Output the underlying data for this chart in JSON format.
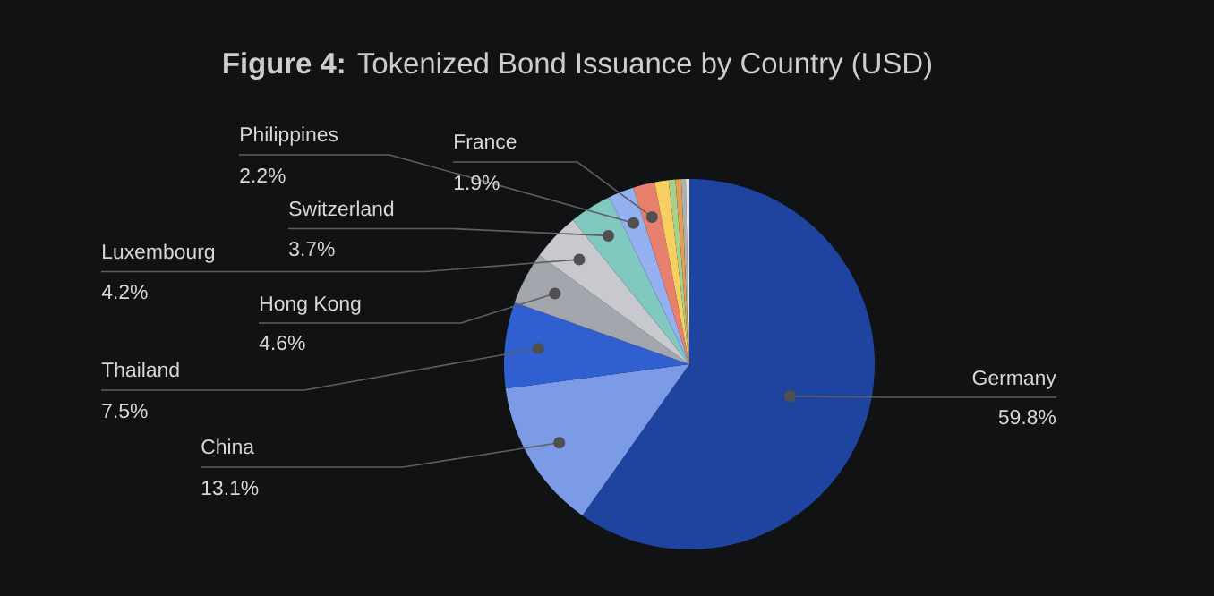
{
  "chart_data": {
    "type": "pie",
    "title": "**Figure 4:** Tokenized Bond Issuance by Country (USD)",
    "categories": [
      "Germany",
      "China",
      "Thailand",
      "Hong Kong",
      "Luxembourg",
      "Switzerland",
      "Philippines",
      "France",
      null,
      null,
      null,
      null,
      null
    ],
    "values": [
      59.8,
      13.1,
      7.5,
      4.6,
      4.2,
      3.7,
      2.2,
      1.9,
      1.2,
      0.6,
      0.5,
      0.4,
      0.3
    ],
    "value_labels": [
      "59.8%",
      "13.1%",
      "7.5%",
      "4.6%",
      "4.2%",
      "3.7%",
      "2.2%",
      "1.9%",
      null,
      null,
      null,
      null,
      null
    ],
    "colors": [
      "#1f44a0",
      "#7b9be6",
      "#2f5fd0",
      "#a4a6ad",
      "#c8c9cf",
      "#80c8c0",
      "#95b0f0",
      "#e8806e",
      "#f5d060",
      "#a8d08c",
      "#e0a050",
      "#b0b0b0",
      "#e8e8e8"
    ]
  }
}
